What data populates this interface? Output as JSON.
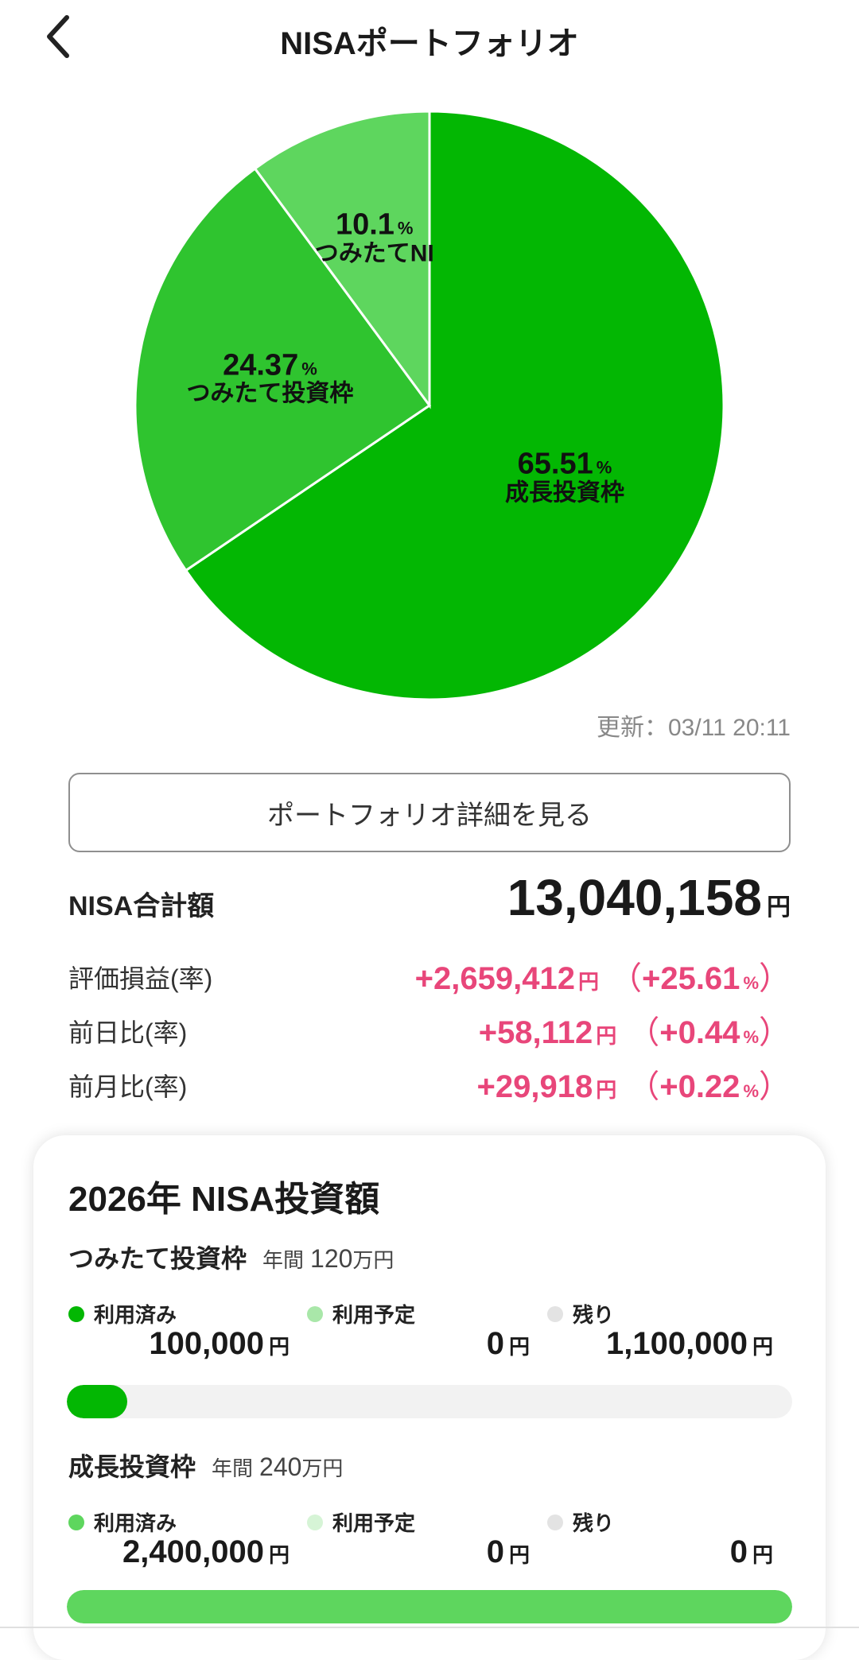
{
  "header": {
    "title": "NISAポートフォリオ",
    "back_icon": "chevron-left-icon"
  },
  "chart_data": {
    "type": "pie",
    "slices": [
      {
        "label": "成長投資枠",
        "value": 65.51,
        "color": "#03b703"
      },
      {
        "label": "つみたて投資枠",
        "value": 24.37,
        "color": "#2fc42f"
      },
      {
        "label": "つみたてNI",
        "value": 10.1,
        "color": "#5ed65e"
      }
    ],
    "value_labels": [
      "65.51",
      "24.37",
      "10.1"
    ],
    "unit": "%"
  },
  "updated": "更新：03/11 20:11",
  "detail_button": "ポートフォリオ詳細を見る",
  "total": {
    "label": "NISA合計額",
    "value": "13,040,158",
    "unit": "円"
  },
  "stats": [
    {
      "label": "評価損益(率)",
      "value": "+2,659,412",
      "unit": "円",
      "open": "（",
      "pct": "+25.61",
      "pct_unit": "%",
      "close": "）"
    },
    {
      "label": "前日比(率)",
      "value": "+58,112",
      "unit": "円",
      "open": "（",
      "pct": "+0.44",
      "pct_unit": "%",
      "close": "）"
    },
    {
      "label": "前月比(率)",
      "value": "+29,918",
      "unit": "円",
      "open": "（",
      "pct": "+0.22",
      "pct_unit": "%",
      "close": "）"
    }
  ],
  "card": {
    "title": "2026年 NISA投資額",
    "sections": [
      {
        "name": "つみたて投資枠",
        "annual_prefix": "年間",
        "annual_amount": "120",
        "annual_unit": "万円",
        "legend": [
          {
            "label": "利用済み",
            "amount": "100,000",
            "unit": "円",
            "color": "#03b703"
          },
          {
            "label": "利用予定",
            "amount": "0",
            "unit": "円",
            "color": "#a9e7a9"
          },
          {
            "label": "残り",
            "amount": "1,100,000",
            "unit": "円",
            "color": "#e3e3e3"
          }
        ],
        "bar_used_fraction": 0.083,
        "bar_color": "#03b703"
      },
      {
        "name": "成長投資枠",
        "annual_prefix": "年間",
        "annual_amount": "240",
        "annual_unit": "万円",
        "legend": [
          {
            "label": "利用済み",
            "amount": "2,400,000",
            "unit": "円",
            "color": "#5ed65e"
          },
          {
            "label": "利用予定",
            "amount": "0",
            "unit": "円",
            "color": "#d6f4d6"
          },
          {
            "label": "残り",
            "amount": "0",
            "unit": "円",
            "color": "#e3e3e3"
          }
        ],
        "bar_used_fraction": 1.0,
        "bar_color": "#5ed65e"
      }
    ]
  }
}
